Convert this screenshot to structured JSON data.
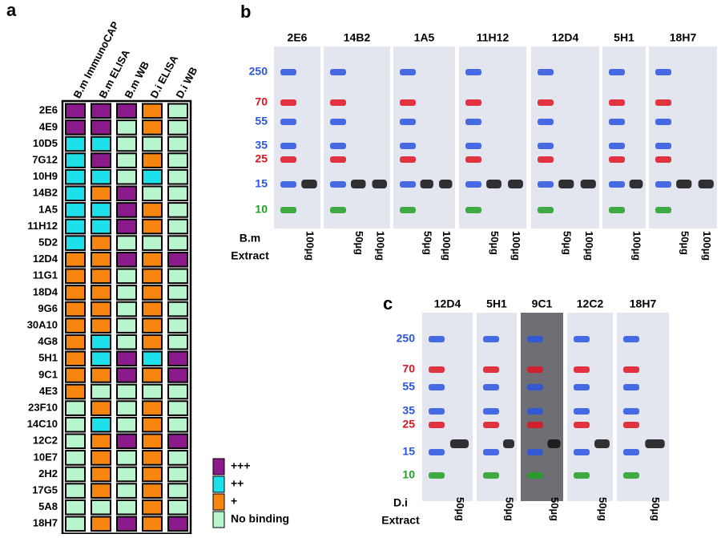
{
  "panel_a": {
    "label": "a",
    "columns": [
      "B.m ImmunoCAP",
      "B.m ELISA",
      "B.m WB",
      "D.i ELISA",
      "D.i WB"
    ],
    "rows": [
      "2E6",
      "4E9",
      "10D5",
      "7G12",
      "10H9",
      "14B2",
      "1A5",
      "11H12",
      "5D2",
      "12D4",
      "11G1",
      "18D4",
      "9G6",
      "30A10",
      "4G8",
      "5H1",
      "9C1",
      "4E3",
      "23F10",
      "14C10",
      "12C2",
      "10E7",
      "2H2",
      "17G5",
      "5A8",
      "18H7"
    ],
    "cells": [
      [
        0,
        0,
        0,
        2,
        3
      ],
      [
        0,
        0,
        3,
        2,
        3
      ],
      [
        1,
        1,
        3,
        3,
        3
      ],
      [
        1,
        0,
        3,
        2,
        3
      ],
      [
        1,
        1,
        3,
        1,
        3
      ],
      [
        1,
        2,
        0,
        3,
        3
      ],
      [
        1,
        1,
        0,
        2,
        3
      ],
      [
        1,
        1,
        0,
        2,
        3
      ],
      [
        1,
        2,
        3,
        3,
        3
      ],
      [
        2,
        2,
        0,
        2,
        0
      ],
      [
        2,
        2,
        3,
        2,
        3
      ],
      [
        2,
        2,
        3,
        2,
        3
      ],
      [
        2,
        2,
        3,
        2,
        3
      ],
      [
        2,
        2,
        3,
        2,
        3
      ],
      [
        2,
        1,
        3,
        2,
        3
      ],
      [
        2,
        1,
        0,
        1,
        0
      ],
      [
        2,
        2,
        0,
        2,
        0
      ],
      [
        2,
        3,
        3,
        3,
        3
      ],
      [
        3,
        2,
        3,
        2,
        3
      ],
      [
        3,
        1,
        3,
        2,
        3
      ],
      [
        3,
        2,
        0,
        2,
        0
      ],
      [
        3,
        2,
        3,
        2,
        3
      ],
      [
        3,
        2,
        3,
        2,
        3
      ],
      [
        3,
        2,
        3,
        2,
        3
      ],
      [
        3,
        3,
        3,
        2,
        3
      ],
      [
        3,
        2,
        0,
        2,
        0
      ]
    ],
    "legend": [
      {
        "label": "+++",
        "color": "#8b1a8b"
      },
      {
        "label": "++",
        "color": "#1ee0e8"
      },
      {
        "label": "+",
        "color": "#f7860f"
      },
      {
        "label": "No binding",
        "color": "#b8f5cd"
      }
    ]
  },
  "panel_b": {
    "label": "b",
    "row_label": [
      "B.m",
      "Extract"
    ],
    "markers": [
      {
        "label": "250",
        "color": "#2a55e0"
      },
      {
        "label": "70",
        "color": "#e01420"
      },
      {
        "label": "55",
        "color": "#2a55e0"
      },
      {
        "label": "35",
        "color": "#2a55e0"
      },
      {
        "label": "25",
        "color": "#e01420"
      },
      {
        "label": "15",
        "color": "#2a55e0"
      },
      {
        "label": "10",
        "color": "#22a022"
      }
    ],
    "blots": [
      {
        "antibody": "2E6",
        "lanes": [
          "100µg"
        ]
      },
      {
        "antibody": "14B2",
        "lanes": [
          "50µg",
          "100µg"
        ]
      },
      {
        "antibody": "1A5",
        "lanes": [
          "50µg",
          "100µg"
        ]
      },
      {
        "antibody": "11H12",
        "lanes": [
          "50µg",
          "100µg"
        ]
      },
      {
        "antibody": "12D4",
        "lanes": [
          "50µg",
          "100µg"
        ]
      },
      {
        "antibody": "5H1",
        "lanes": [
          "100µg"
        ]
      },
      {
        "antibody": "18H7",
        "lanes": [
          "50µg",
          "100µg"
        ]
      }
    ]
  },
  "panel_c": {
    "label": "c",
    "row_label": [
      "D.i",
      "Extract"
    ],
    "markers": [
      {
        "label": "250",
        "color": "#2a55e0"
      },
      {
        "label": "70",
        "color": "#e01420"
      },
      {
        "label": "55",
        "color": "#2a55e0"
      },
      {
        "label": "35",
        "color": "#2a55e0"
      },
      {
        "label": "25",
        "color": "#e01420"
      },
      {
        "label": "15",
        "color": "#2a55e0"
      },
      {
        "label": "10",
        "color": "#22a022"
      }
    ],
    "blots": [
      {
        "antibody": "12D4",
        "lanes": [
          "50µg"
        ]
      },
      {
        "antibody": "5H1",
        "lanes": [
          "50µg"
        ]
      },
      {
        "antibody": "9C1",
        "lanes": [
          "50µg"
        ]
      },
      {
        "antibody": "12C2",
        "lanes": [
          "50µg"
        ]
      },
      {
        "antibody": "18H7",
        "lanes": [
          "50µg"
        ]
      }
    ]
  }
}
